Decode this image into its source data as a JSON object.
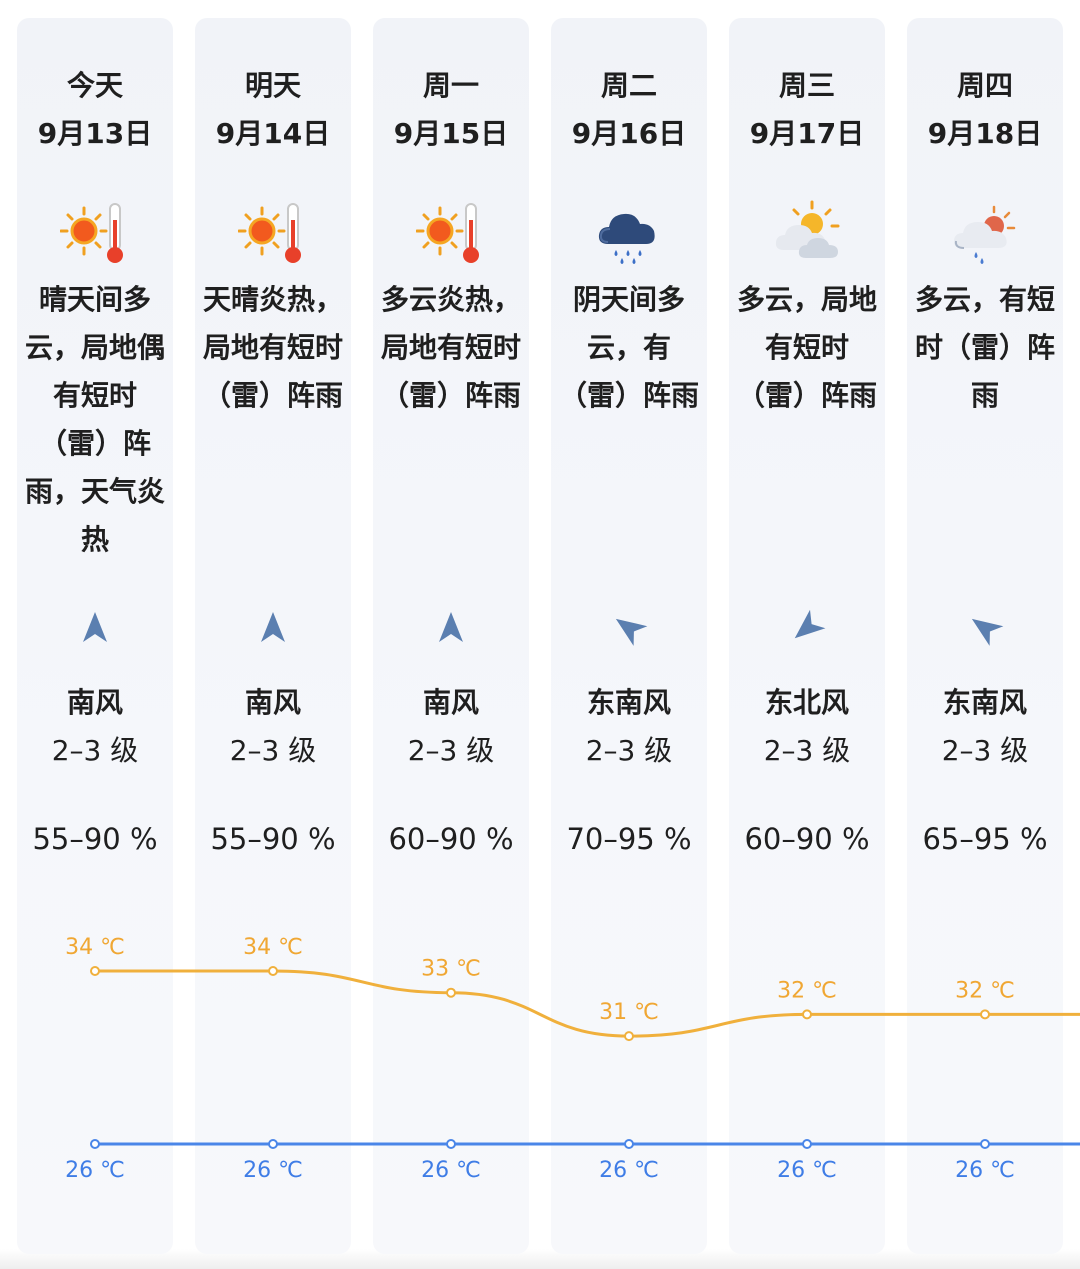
{
  "colors": {
    "high_line": "#f0b03c",
    "low_line": "#4a86e8",
    "column_bg": "#f3f5f9"
  },
  "days": [
    {
      "name": "今天",
      "date": "9月13日",
      "icon": "sunny-hot-icon",
      "desc": "晴天间多云，局地偶有短时（雷）阵雨，天气炎热",
      "wind_arrow": "wind-arrow-south-icon",
      "wind_dir": "南风",
      "wind_level": "2–3 级",
      "humidity": "55–90 %"
    },
    {
      "name": "明天",
      "date": "9月14日",
      "icon": "sunny-hot-icon",
      "desc": "天晴炎热，局地有短时（雷）阵雨",
      "wind_arrow": "wind-arrow-south-icon",
      "wind_dir": "南风",
      "wind_level": "2–3 级",
      "humidity": "55–90 %"
    },
    {
      "name": "周一",
      "date": "9月15日",
      "icon": "sunny-hot-icon",
      "desc": "多云炎热，局地有短时（雷）阵雨",
      "wind_arrow": "wind-arrow-south-icon",
      "wind_dir": "南风",
      "wind_level": "2–3 级",
      "humidity": "60–90 %"
    },
    {
      "name": "周二",
      "date": "9月16日",
      "icon": "cloud-rain-icon",
      "desc": "阴天间多云，有（雷）阵雨",
      "wind_arrow": "wind-arrow-southeast-icon",
      "wind_dir": "东南风",
      "wind_level": "2–3 级",
      "humidity": "70–95 %"
    },
    {
      "name": "周三",
      "date": "9月17日",
      "icon": "partly-cloudy-icon",
      "desc": "多云，局地有短时（雷）阵雨",
      "wind_arrow": "wind-arrow-northeast-icon",
      "wind_dir": "东北风",
      "wind_level": "2–3 级",
      "humidity": "60–90 %"
    },
    {
      "name": "周四",
      "date": "9月18日",
      "icon": "cloudy-shower-icon",
      "desc": "多云，有短时（雷）阵雨",
      "wind_arrow": "wind-arrow-southeast-icon",
      "wind_dir": "东南风",
      "wind_level": "2–3 级",
      "humidity": "65–95 %"
    }
  ],
  "chart_data": {
    "type": "line",
    "categories": [
      "9月13日",
      "9月14日",
      "9月15日",
      "9月16日",
      "9月17日",
      "9月18日"
    ],
    "series": [
      {
        "values": [
          34,
          34,
          33,
          31,
          32,
          32
        ],
        "labels": [
          "34 ℃",
          "34 ℃",
          "33 ℃",
          "31 ℃",
          "32 ℃",
          "32 ℃"
        ],
        "color": "#f0b03c"
      },
      {
        "values": [
          26,
          26,
          26,
          26,
          26,
          26
        ],
        "labels": [
          "26 ℃",
          "26 ℃",
          "26 ℃",
          "26 ℃",
          "26 ℃",
          "26 ℃"
        ],
        "color": "#4a86e8"
      }
    ]
  }
}
